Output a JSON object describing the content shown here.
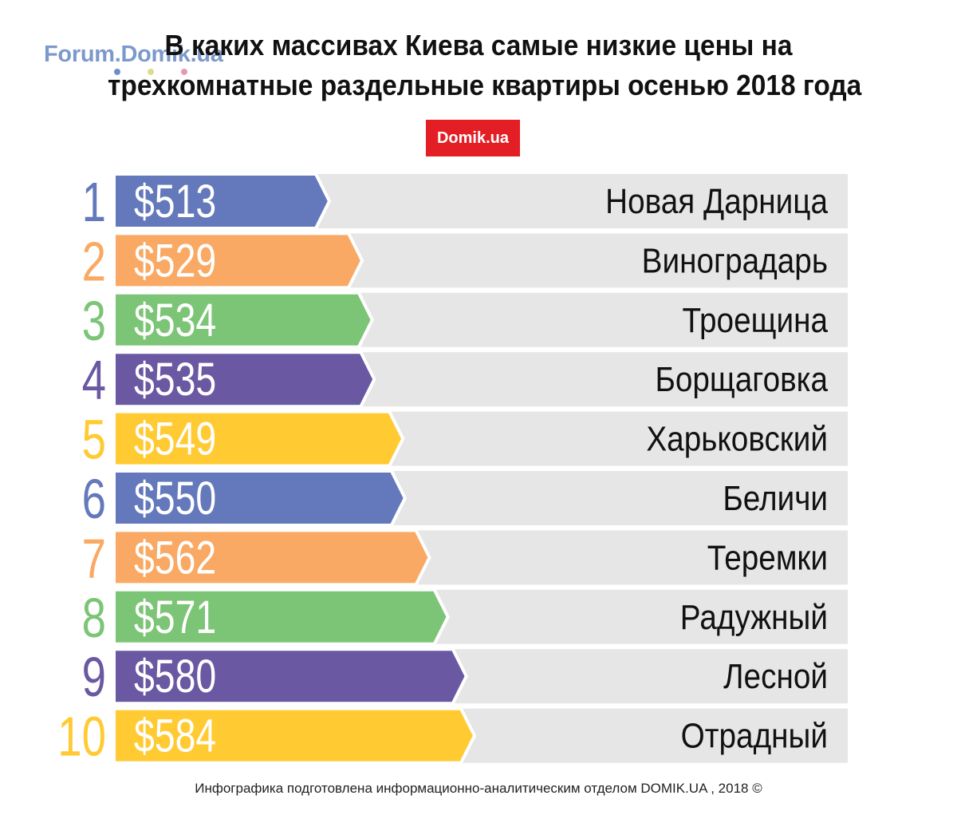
{
  "watermark": {
    "text": "Forum.Domik.ua",
    "dot_colors": [
      "#6e8fc6",
      "#d9dd8c",
      "#e39ab0"
    ]
  },
  "title": {
    "line1": "В каких массивах Киева самые низкие цены на",
    "line2": "трехкомнатные раздельные квартиры осенью 2018 года"
  },
  "brand": {
    "label": "Domik.ua",
    "color": "#e31e24"
  },
  "footer": {
    "text": "Инфографика подготовлена информационно-аналитическим отделом DOMIK.UA , 2018 ©"
  },
  "chart_data": {
    "type": "bar",
    "orientation": "horizontal",
    "title": "В каких массивах Киева самые низкие цены на трехкомнатные раздельные квартиры осенью 2018 года",
    "categories": [
      "Новая Дарница",
      "Виноградарь",
      "Троещина",
      "Борщаговка",
      "Харьковский",
      "Беличи",
      "Теремки",
      "Радужный",
      "Лесной",
      "Отрадный"
    ],
    "ranks": [
      "1",
      "2",
      "3",
      "4",
      "5",
      "6",
      "7",
      "8",
      "9",
      "10"
    ],
    "values": [
      513,
      529,
      534,
      535,
      549,
      550,
      562,
      571,
      580,
      584
    ],
    "value_labels": [
      "$513",
      "$529",
      "$534",
      "$535",
      "$549",
      "$550",
      "$562",
      "$571",
      "$580",
      "$584"
    ],
    "bar_colors": [
      "#6479bc",
      "#f9a963",
      "#7cc576",
      "#6a58a3",
      "#ffca32",
      "#6479bc",
      "#f9a963",
      "#7cc576",
      "#6a58a3",
      "#ffca32"
    ],
    "track_color": "#e6e6e6",
    "legend": "none",
    "grid": false
  }
}
